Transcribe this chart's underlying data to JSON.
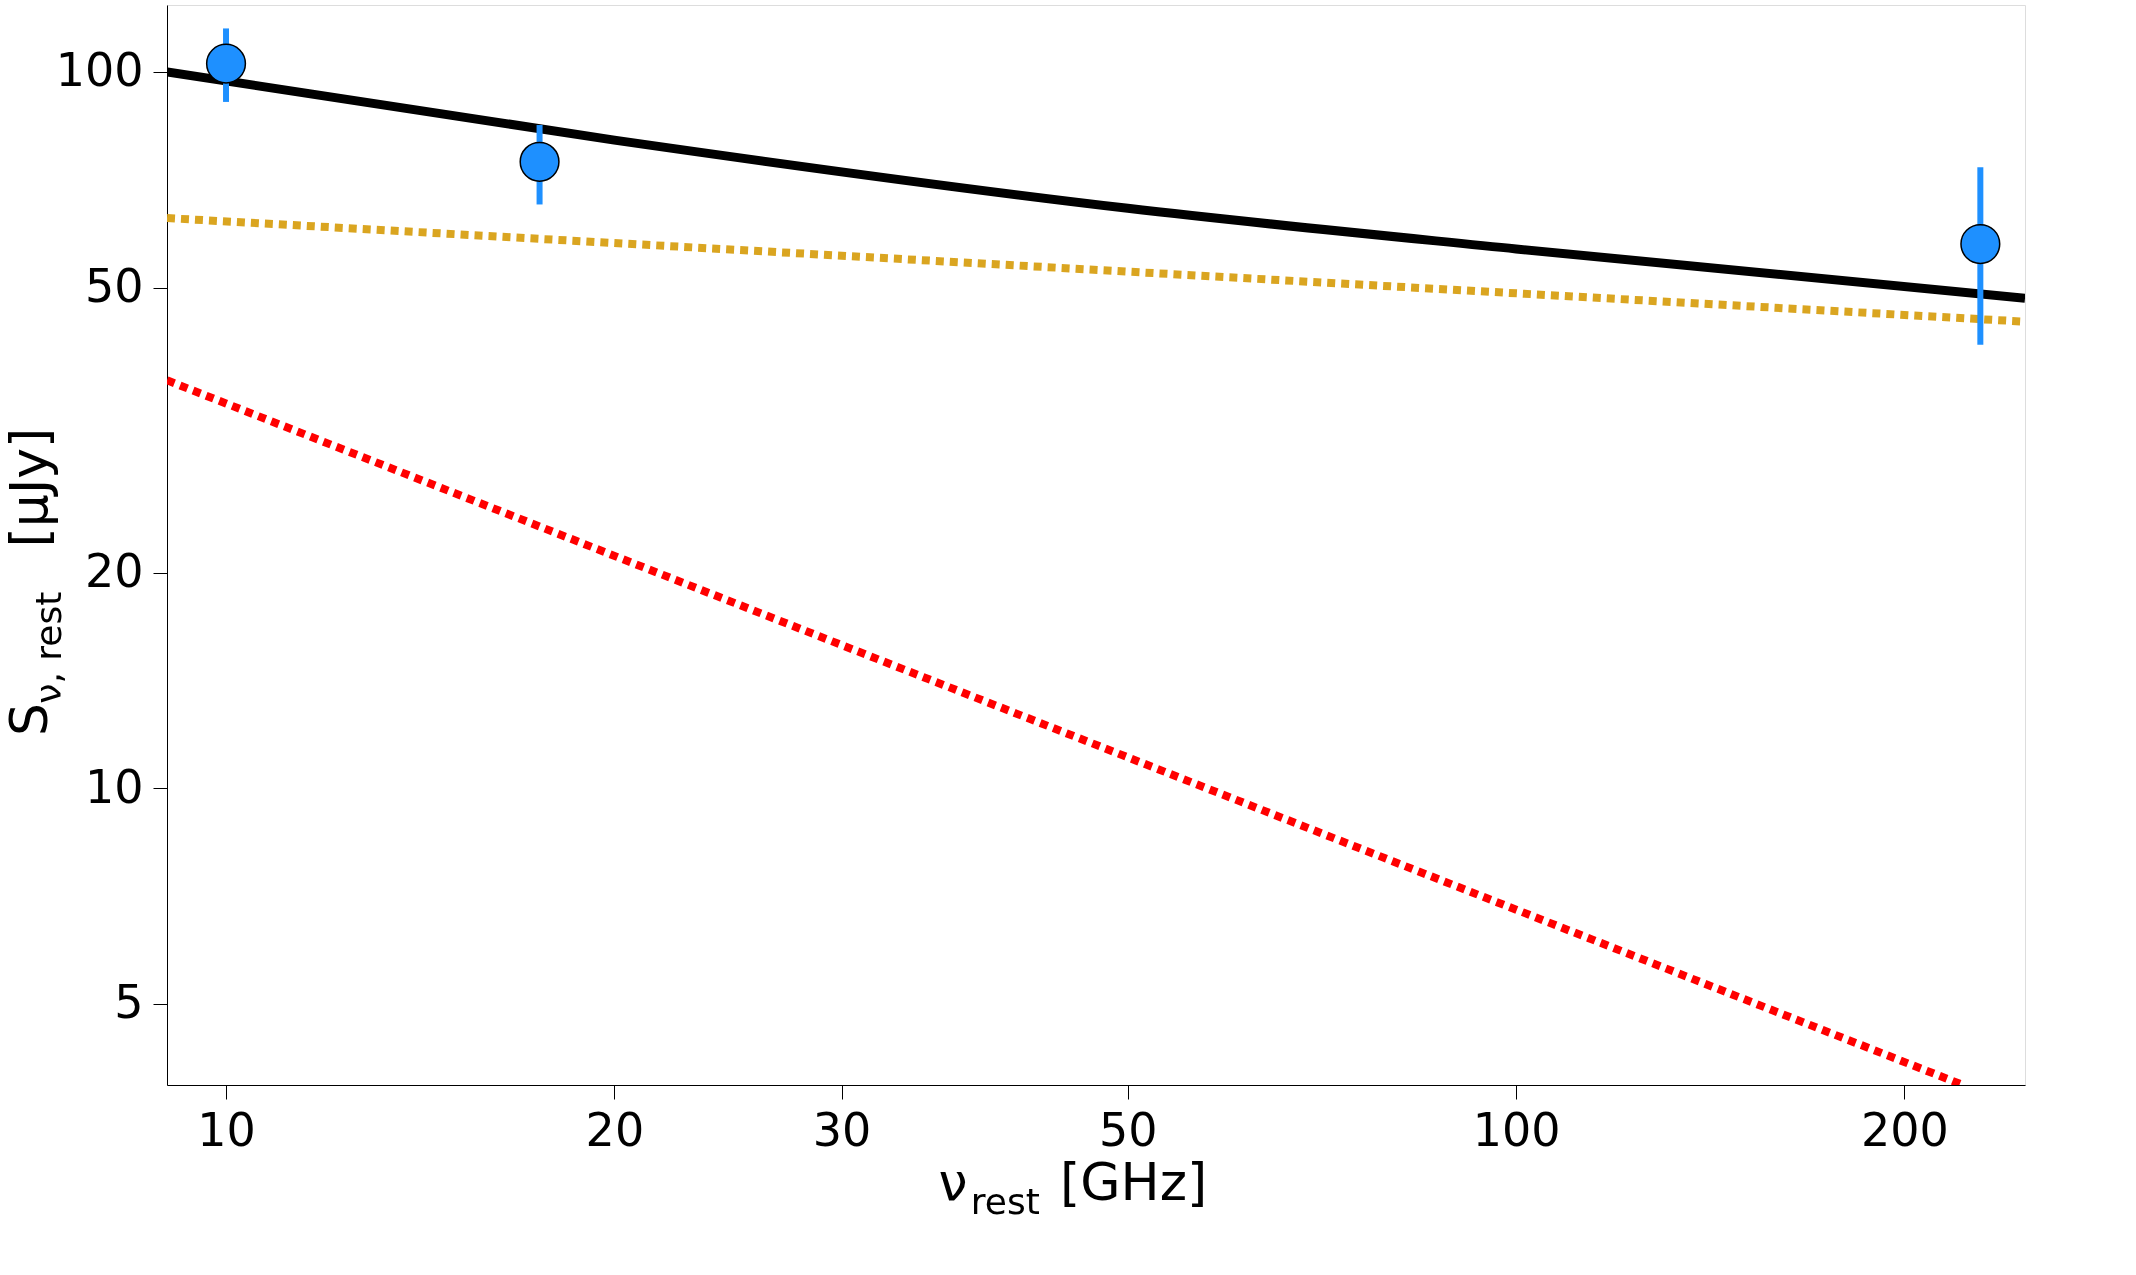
{
  "chart_data": {
    "type": "line",
    "xlabel": "ν$_{rest}$ [GHz]",
    "ylabel": "S$_{ν, rest}$ [μJy]",
    "log": "xy",
    "grid": false,
    "xlim": [
      9.0,
      248
    ],
    "ylim": [
      3.85,
      124
    ],
    "xticks": [
      10,
      20,
      30,
      50,
      100,
      200
    ],
    "yticks": [
      5,
      10,
      20,
      50,
      100
    ],
    "series": [
      {
        "color": "#000000",
        "line_style": "solid",
        "marker": "none",
        "x": [
          9.0,
          20,
          50,
          100,
          248
        ],
        "values": [
          100,
          80.3,
          64.5,
          56.6,
          48.3
        ]
      },
      {
        "color": "#daa520",
        "line_style": "dotted",
        "marker": "none",
        "x": [
          9.0,
          248
        ],
        "values": [
          62.5,
          44.8
        ]
      },
      {
        "color": "#ff0000",
        "line_style": "dotted",
        "marker": "none",
        "x": [
          9.0,
          222
        ],
        "values": [
          37.1,
          3.85
        ]
      },
      {
        "type": "scatter",
        "color": "#1e90ff",
        "marker": "circle",
        "x": [
          10,
          17.5,
          229
        ],
        "values": [
          102.7,
          74.9,
          57.5
        ],
        "errors": [
          [
            90.8,
            115
          ],
          [
            65.3,
            84.3
          ],
          [
            41.6,
            73.6
          ]
        ]
      }
    ]
  }
}
